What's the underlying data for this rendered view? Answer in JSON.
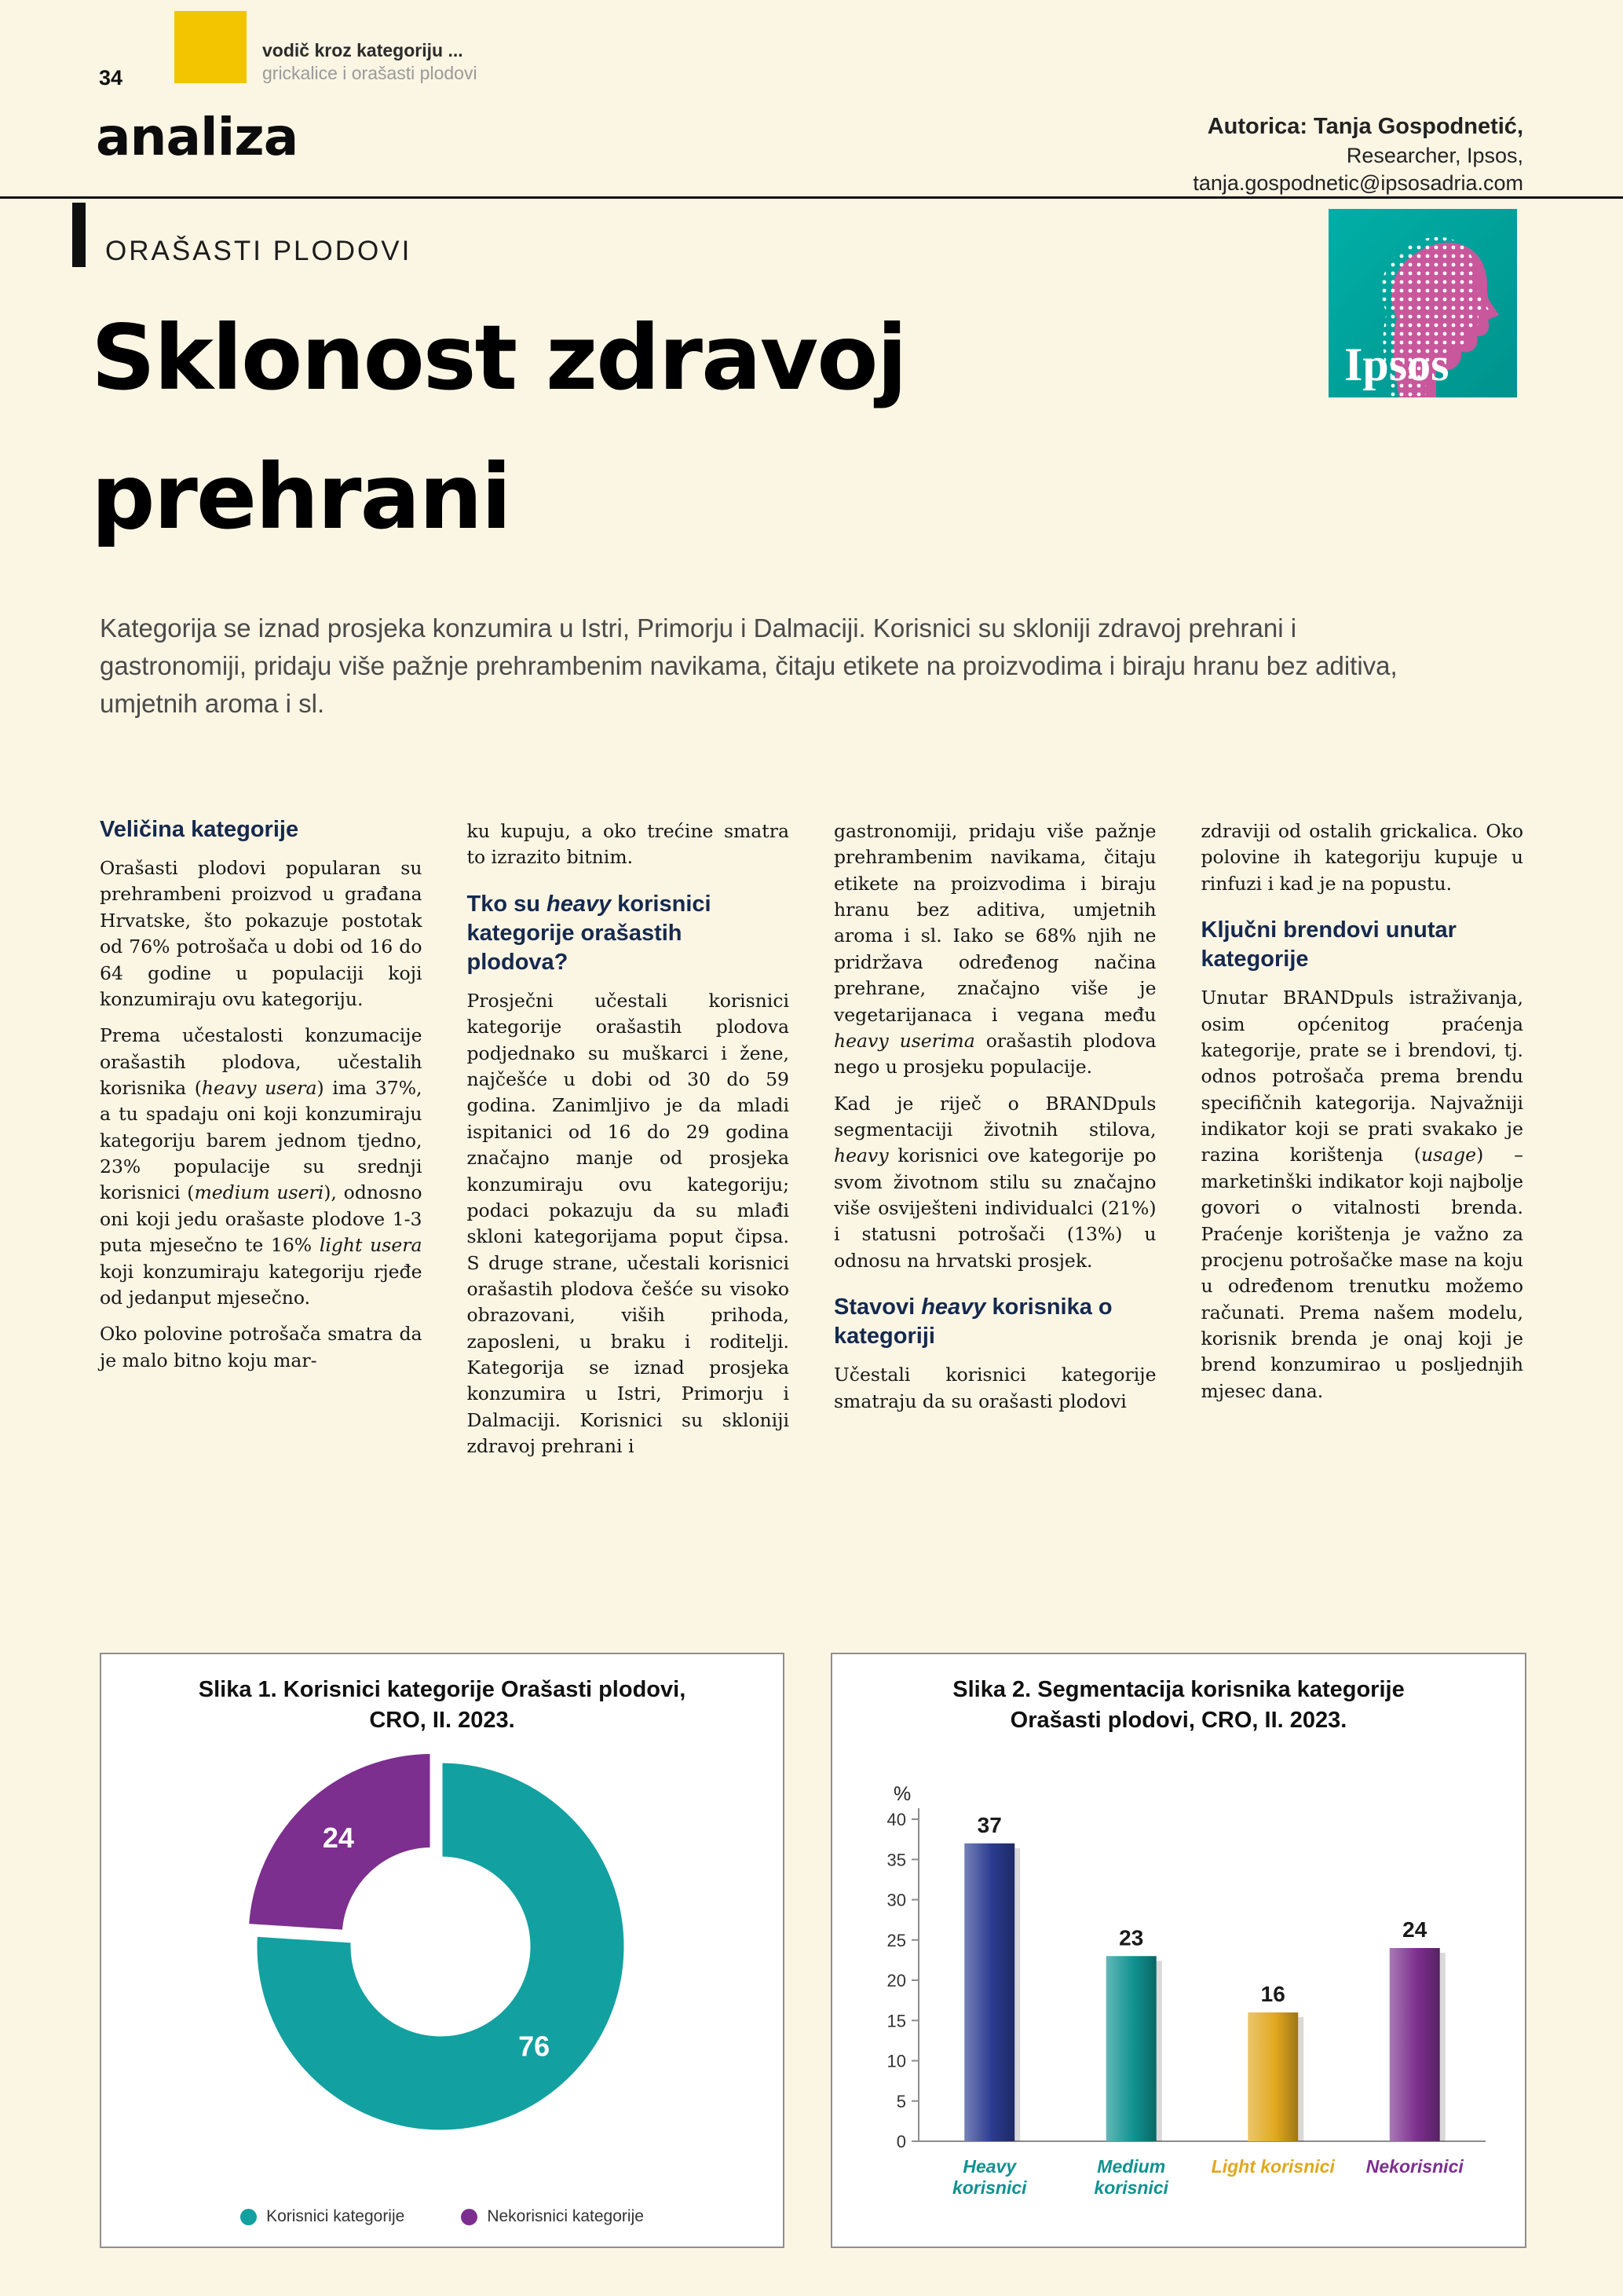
{
  "page": {
    "number": "34",
    "kicker_line1": "vodič kroz kategoriju ...",
    "kicker_line2": "grickalice i orašasti plodovi",
    "section": "analiza",
    "author_bold": "Autorica: Tanja Gospodnetić,",
    "author_role": "Researcher, Ipsos,",
    "author_email": "tanja.gospodnetic@ipsosadria.com"
  },
  "article": {
    "eyebrow": "ORAŠASTI PLODOVI",
    "headline_line1": "Sklonost zdravoj",
    "headline_line2": "prehrani",
    "lead": "Kategorija se iznad prosjeka konzumira u Istri, Primorju i Dalmaciji. Korisnici su skloniji zdravoj prehrani i gastronomiji, pridaju više pažnje prehrambenim navikama, čitaju etikete na proizvodima i biraju hranu bez aditiva, umjetnih aroma i sl."
  },
  "logo": {
    "brand": "Ipsos"
  },
  "columns": [
    {
      "blocks": [
        {
          "type": "heading",
          "segments": [
            {
              "t": "Veličina kategorije"
            }
          ]
        },
        {
          "type": "para",
          "segments": [
            {
              "t": "Orašasti plodovi popularan su prehrambeni proizvod u građana Hrvatske, što pokazuje postotak od 76% potrošača u dobi od 16 do 64 godine u populaciji koji konzumiraju ovu kategoriju."
            }
          ]
        },
        {
          "type": "para",
          "segments": [
            {
              "t": "Prema učestalosti konzumacije orašastih plodova, učestalih korisnika ("
            },
            {
              "t": "heavy usera",
              "i": true
            },
            {
              "t": ") ima 37%, a tu spadaju oni koji konzumiraju kategoriju barem jednom tjedno, 23% populacije su srednji korisnici ("
            },
            {
              "t": "medium useri",
              "i": true
            },
            {
              "t": "), odnosno oni koji jedu orašaste plodove 1-3 puta mjesečno te 16% "
            },
            {
              "t": "light usera",
              "i": true
            },
            {
              "t": " koji konzumiraju kategoriju rjeđe od jedanput mjesečno."
            }
          ]
        },
        {
          "type": "para",
          "segments": [
            {
              "t": "Oko polovine potrošača smatra da je malo bitno koju mar-"
            }
          ]
        }
      ]
    },
    {
      "blocks": [
        {
          "type": "para",
          "segments": [
            {
              "t": "ku kupuju, a oko trećine smatra to izrazito bitnim."
            }
          ]
        },
        {
          "type": "heading",
          "segments": [
            {
              "t": "Tko su "
            },
            {
              "t": "heavy",
              "i": true
            },
            {
              "t": " korisnici kategorije orašastih plodova?"
            }
          ]
        },
        {
          "type": "para",
          "segments": [
            {
              "t": "Prosječni učestali korisnici kategorije orašastih plodova podjednako su muškarci i žene, najčešće u dobi od 30 do 59 godina. Zanimljivo je da mladi ispitanici od 16 do 29 godina značajno manje od prosjeka konzumiraju ovu kategoriju; podaci pokazuju da su mlađi skloni kategorijama poput čipsa. S druge strane, učestali korisnici orašastih plodova češće su visoko obrazovani, viših prihoda, zaposleni, u braku i roditelji. Kategorija se iznad prosjeka konzumira u Istri, Primorju i Dalmaciji. Korisnici su skloniji zdravoj prehrani i"
            }
          ]
        }
      ]
    },
    {
      "blocks": [
        {
          "type": "para",
          "segments": [
            {
              "t": "gastronomiji, pridaju više pažnje prehrambenim navikama, čitaju etikete na proizvodima i biraju hranu bez aditiva, umjetnih aroma i sl. Iako se 68% njih ne pridržava određenog načina prehrane, značajno više je vegetarijanaca i vegana među "
            },
            {
              "t": "heavy userima",
              "i": true
            },
            {
              "t": " orašastih plodova nego u prosjeku populacije."
            }
          ]
        },
        {
          "type": "para",
          "segments": [
            {
              "t": "Kad je riječ o BRANDpuls segmentaciji životnih stilova, "
            },
            {
              "t": "heavy",
              "i": true
            },
            {
              "t": " korisnici ove kategorije po svom životnom stilu su značajno više osviješteni individualci (21%) i statusni potrošači (13%) u odnosu na hrvatski prosjek."
            }
          ]
        },
        {
          "type": "heading",
          "segments": [
            {
              "t": "Stavovi "
            },
            {
              "t": "heavy",
              "i": true
            },
            {
              "t": " korisnika o kategoriji"
            }
          ]
        },
        {
          "type": "para",
          "segments": [
            {
              "t": "Učestali korisnici kategorije smatraju da su orašasti plodovi"
            }
          ]
        }
      ]
    },
    {
      "blocks": [
        {
          "type": "para",
          "segments": [
            {
              "t": "zdraviji od ostalih grickalica. Oko polovine ih kategoriju kupuje u rinfuzi i kad je na popustu."
            }
          ]
        },
        {
          "type": "heading",
          "segments": [
            {
              "t": "Ključni brendovi unutar kategorije"
            }
          ]
        },
        {
          "type": "para",
          "segments": [
            {
              "t": "Unutar BRANDpuls istraživanja, osim općenitog praćenja kategorije, prate se i brendovi, tj. odnos potrošača prema brendu specifičnih kategorija. Najvažniji indikator koji se prati svakako je razina korištenja ("
            },
            {
              "t": "usage",
              "i": true
            },
            {
              "t": ") – marketinški indikator koji najbolje govori o vitalnosti brenda. Praćenje korištenja je važno za procjenu potrošačke mase na koju u određenom trenutku možemo računati. Prema našem modelu, korisnik brenda je onaj koji je brend konzumirao u posljednjih mjesec dana."
            }
          ]
        }
      ]
    }
  ],
  "chart_data": [
    {
      "type": "pie",
      "donut": true,
      "title_lines": [
        "Slika 1. Korisnici kategorije Orašasti plodovi,",
        "CRO, II. 2023."
      ],
      "labels": [
        "Korisnici kategorije",
        "Nekorisnici kategorije"
      ],
      "values": [
        76,
        24
      ],
      "colors": [
        "#13A0A0",
        "#7C2F8E"
      ],
      "start_angle_deg": 0,
      "exploded_index": 1,
      "legend_position": "bottom"
    },
    {
      "type": "bar",
      "title_lines": [
        "Slika 2. Segmentacija korisnika kategorije",
        "Orašasti plodovi, CRO, II. 2023."
      ],
      "ylabel": "%",
      "ylim": [
        0,
        40
      ],
      "yticks": [
        0,
        5,
        10,
        15,
        20,
        25,
        30,
        35,
        40
      ],
      "categories": [
        "Heavy korisnici",
        "Medium korisnici",
        "Light korisnici",
        "Nekorisnici"
      ],
      "categories_lines": [
        [
          "Heavy",
          "korisnici"
        ],
        [
          "Medium",
          "korisnici"
        ],
        [
          "Light korisnici"
        ],
        [
          "Nekorisnici"
        ]
      ],
      "values": [
        37,
        23,
        16,
        24
      ],
      "bar_colors": [
        "#2B3B90",
        "#0F9290",
        "#E0A81E",
        "#7C2F8E"
      ],
      "label_colors": [
        "#0F9290",
        "#0F9290",
        "#E0A81E",
        "#7C2F8E"
      ],
      "grid": false
    }
  ]
}
